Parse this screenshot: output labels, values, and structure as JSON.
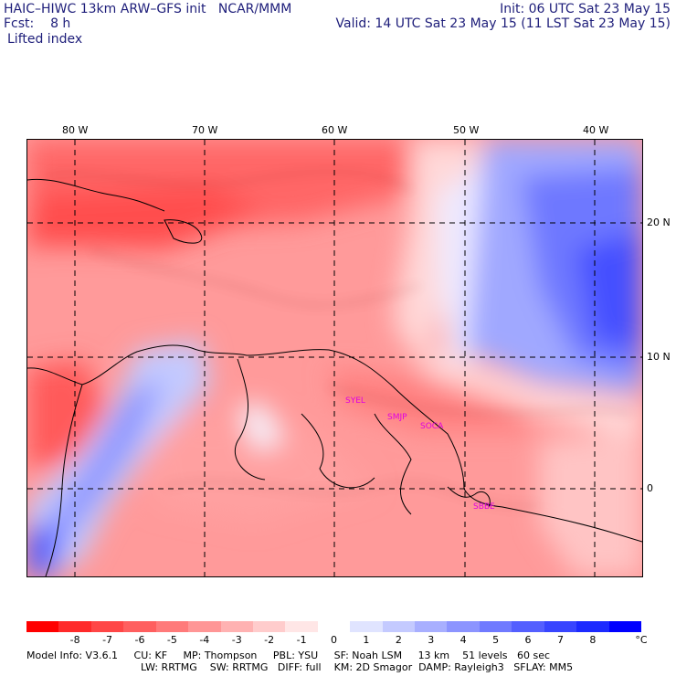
{
  "header": {
    "title": "HAIC–HIWC 13km ARW–GFS init",
    "org": "NCAR/MMM",
    "init": "Init: 06 UTC Sat 23 May 15",
    "fcst_label": "Fcst:",
    "fcst_value": "8 h",
    "valid": "Valid: 14 UTC Sat 23 May 15 (11 LST Sat 23 May 15)",
    "field": "Lifted index"
  },
  "map": {
    "lon_labels": [
      "80 W",
      "70 W",
      "60 W",
      "50 W",
      "40 W"
    ],
    "lat_labels": [
      "20 N",
      "10 N",
      "0"
    ],
    "stations": [
      "SYEL",
      "SMJP",
      "SOCA",
      "SBBE"
    ],
    "colors": {
      "grid": "#000000",
      "coast": "#000000",
      "station": "#e000e0"
    }
  },
  "colorbar": {
    "ticks": [
      "-8",
      "-7",
      "-6",
      "-5",
      "-4",
      "-3",
      "-2",
      "-1",
      "0",
      "1",
      "2",
      "3",
      "4",
      "5",
      "6",
      "7",
      "8"
    ],
    "unit": "°C",
    "colors": [
      "#ff0000",
      "#ff2a2a",
      "#ff4646",
      "#ff5f5f",
      "#ff7a7a",
      "#ff9696",
      "#ffb2b2",
      "#ffcccc",
      "#ffe6e6",
      "#ffffff",
      "#e0e4ff",
      "#c4caff",
      "#a8afff",
      "#8c94ff",
      "#707aff",
      "#545fff",
      "#3845ff",
      "#1c2aff",
      "#0000ff"
    ]
  },
  "footer": {
    "line1": [
      "Model Info: V3.6.1",
      "CU: KF",
      "MP: Thompson",
      "PBL: YSU",
      "SF: Noah LSM",
      "13 km",
      "51 levels",
      "60 sec"
    ],
    "line2": [
      "LW: RRTMG",
      "SW: RRTMG",
      "DIFF: full",
      "KM: 2D Smagor",
      "DAMP: Rayleigh3",
      "SFLAY: MM5"
    ]
  }
}
